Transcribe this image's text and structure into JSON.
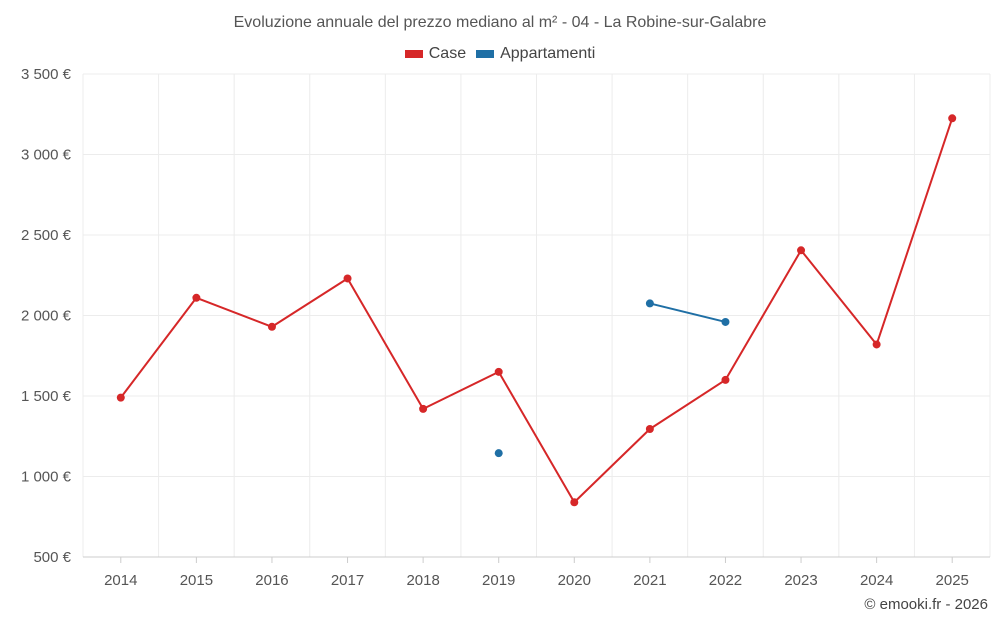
{
  "chart_data": {
    "type": "line",
    "title": "Evoluzione annuale del prezzo mediano al m² - 04 - La Robine-sur-Galabre",
    "xlabel": "",
    "ylabel": "",
    "x": [
      2014,
      2015,
      2016,
      2017,
      2018,
      2019,
      2020,
      2021,
      2022,
      2023,
      2024,
      2025
    ],
    "ylim": [
      500,
      3500
    ],
    "yticks": [
      500,
      1000,
      1500,
      2000,
      2500,
      3000,
      3500
    ],
    "ytick_labels": [
      "500 €",
      "1 000 €",
      "1 500 €",
      "2 000 €",
      "2 500 €",
      "3 000 €",
      "3 500 €"
    ],
    "grid": true,
    "legend_position": "top-center",
    "series": [
      {
        "name": "Case",
        "color": "#d62728",
        "values": [
          1490,
          2110,
          1930,
          2230,
          1420,
          1650,
          840,
          1295,
          1600,
          2405,
          1820,
          3225
        ]
      },
      {
        "name": "Appartamenti",
        "color": "#1f6fa5",
        "values": [
          null,
          null,
          null,
          null,
          null,
          1145,
          null,
          2075,
          1960,
          null,
          null,
          null
        ]
      }
    ]
  },
  "footer": {
    "credit": "© emooki.fr - 2026"
  }
}
